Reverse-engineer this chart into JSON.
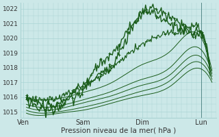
{
  "bg_color": "#cce8e8",
  "grid_color": "#aad4d4",
  "line_color_dark": "#1a5c1a",
  "line_color_light": "#3a8c3a",
  "title": "Pression niveau de la mer( hPa )",
  "ylabel_ticks": [
    1015,
    1016,
    1017,
    1018,
    1019,
    1020,
    1021,
    1022
  ],
  "ylim": [
    1014.6,
    1022.4
  ],
  "x_ticks": [
    0,
    1,
    2,
    3
  ],
  "x_labels": [
    "Ven",
    "Sam",
    "Dim",
    "Lun"
  ],
  "xlim": [
    -0.05,
    3.25
  ],
  "vertical_line_x": 3.0,
  "noisy_lines": [
    {
      "keypoints_x": [
        0.05,
        0.3,
        0.55,
        0.8,
        1.05,
        1.3,
        1.55,
        1.75,
        1.95,
        2.1,
        2.25,
        2.45,
        2.65,
        2.85,
        3.05,
        3.15
      ],
      "keypoints_y": [
        1015.9,
        1015.5,
        1015.4,
        1016.2,
        1017.0,
        1018.3,
        1019.2,
        1020.5,
        1021.4,
        1021.8,
        1021.5,
        1021.0,
        1020.7,
        1020.3,
        1020.0,
        1017.8
      ],
      "noise": 0.15,
      "lw": 1.0,
      "seed": 10
    },
    {
      "keypoints_x": [
        0.05,
        0.25,
        0.45,
        0.7,
        0.95,
        1.2,
        1.45,
        1.65,
        1.85,
        2.0,
        2.15,
        2.3,
        2.5,
        2.7,
        2.9,
        3.05,
        3.15
      ],
      "keypoints_y": [
        1015.8,
        1015.3,
        1015.1,
        1015.6,
        1016.2,
        1017.3,
        1018.0,
        1019.3,
        1020.8,
        1021.7,
        1022.0,
        1021.8,
        1021.3,
        1020.8,
        1020.2,
        1020.0,
        1017.5
      ],
      "noise": 0.18,
      "lw": 1.0,
      "seed": 20
    },
    {
      "keypoints_x": [
        0.05,
        0.3,
        0.6,
        0.9,
        1.2,
        1.5,
        1.8,
        2.1,
        2.4,
        2.7,
        3.0,
        3.15
      ],
      "keypoints_y": [
        1016.0,
        1015.8,
        1016.0,
        1016.5,
        1017.2,
        1018.0,
        1019.0,
        1019.8,
        1020.3,
        1020.5,
        1020.4,
        1017.9
      ],
      "noise": 0.12,
      "lw": 0.9,
      "seed": 30
    }
  ],
  "smooth_lines": [
    {
      "x": [
        0.05,
        0.3,
        0.6,
        1.0,
        1.5,
        2.0,
        2.5,
        3.0,
        3.18
      ],
      "y": [
        1015.9,
        1015.8,
        1015.9,
        1016.3,
        1017.0,
        1018.2,
        1019.2,
        1020.0,
        1017.8
      ]
    },
    {
      "x": [
        0.05,
        0.3,
        0.6,
        1.0,
        1.5,
        2.0,
        2.5,
        3.0,
        3.18
      ],
      "y": [
        1015.5,
        1015.3,
        1015.4,
        1015.8,
        1016.4,
        1017.2,
        1018.1,
        1019.2,
        1017.6
      ]
    },
    {
      "x": [
        0.05,
        0.3,
        0.6,
        1.0,
        1.5,
        2.0,
        2.5,
        3.0,
        3.18
      ],
      "y": [
        1015.3,
        1015.1,
        1015.2,
        1015.6,
        1016.1,
        1016.8,
        1017.6,
        1018.7,
        1017.4
      ]
    },
    {
      "x": [
        0.05,
        0.3,
        0.6,
        1.0,
        1.5,
        2.0,
        2.5,
        3.0,
        3.18
      ],
      "y": [
        1015.1,
        1014.9,
        1015.0,
        1015.3,
        1015.8,
        1016.4,
        1017.2,
        1018.3,
        1017.2
      ]
    },
    {
      "x": [
        0.05,
        0.3,
        0.6,
        1.0,
        1.5,
        2.0,
        2.5,
        3.0,
        3.18
      ],
      "y": [
        1014.9,
        1014.75,
        1014.9,
        1015.1,
        1015.6,
        1016.1,
        1016.8,
        1017.9,
        1017.0
      ]
    }
  ]
}
